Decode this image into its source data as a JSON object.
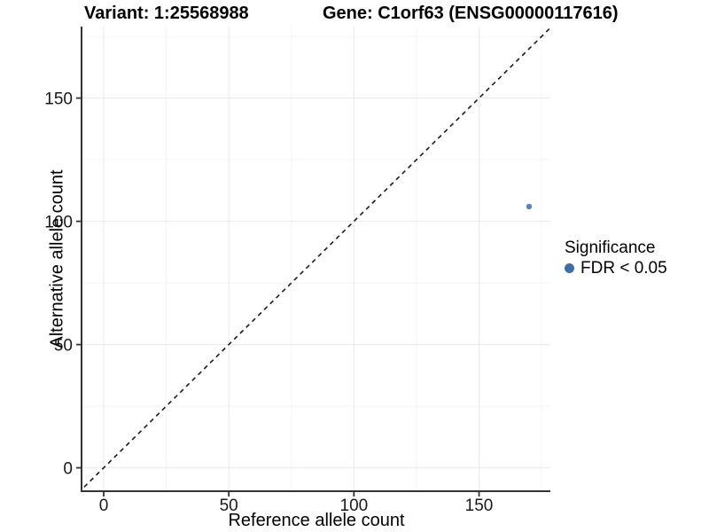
{
  "chart_data": {
    "type": "scatter",
    "title_left": "Variant: 1:25568988",
    "title_right": "Gene: C1orf63 (ENSG00000117616)",
    "xlabel": "Reference allele count",
    "ylabel": "Alternative allele count",
    "xlim": [
      -8.5,
      178.5
    ],
    "ylim": [
      -9.5,
      179.0
    ],
    "x_ticks": [
      0,
      50,
      100,
      150
    ],
    "y_ticks": [
      0,
      50,
      100,
      150
    ],
    "x_minor_ticks": [
      25,
      75,
      125,
      175
    ],
    "y_minor_ticks": [
      25,
      75,
      125,
      175
    ],
    "grid": true,
    "points": [
      {
        "x": 170,
        "y": 106,
        "group": "FDR < 0.05"
      }
    ],
    "reference_line": {
      "kind": "identity",
      "equation": "y = x",
      "style": "dashed"
    },
    "legend": {
      "position": "right",
      "title": "Significance",
      "entries": [
        {
          "label": "FDR < 0.05",
          "color": "#3d6fa6"
        }
      ]
    },
    "colors": {
      "point": "#4a77a8",
      "legend_point": "#3d6fa6",
      "axis_line": "#333333",
      "tick_label": "#1a1a1a",
      "grid_major": "#e9e9e9",
      "grid_minor": "#f4f4f4",
      "reference_line": "#1a1a1a",
      "background": "#ffffff"
    }
  }
}
